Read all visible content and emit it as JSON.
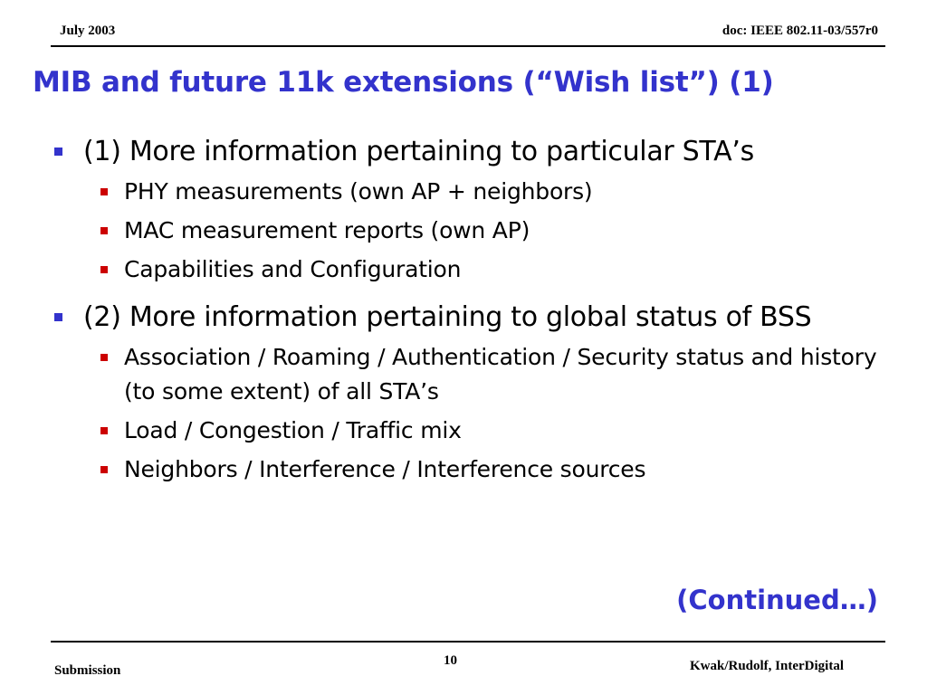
{
  "header": {
    "date": "July 2003",
    "doc": "doc: IEEE 802.11-03/557r0"
  },
  "title": "MIB and future 11k extensions (“Wish list”) (1)",
  "bullets": [
    {
      "text": "(1) More information pertaining to particular STA’s",
      "sub": [
        "PHY measurements (own AP + neighbors)",
        "MAC measurement reports (own AP)",
        "Capabilities and Configuration"
      ]
    },
    {
      "text": "(2) More information pertaining to global status of BSS",
      "sub": [
        "Association / Roaming / Authentication / Security status and history (to some extent) of all STA’s",
        "Load / Congestion / Traffic mix",
        "Neighbors / Interference / Interference sources"
      ]
    }
  ],
  "continued": "(Continued…)",
  "footer": {
    "left": "Submission",
    "page": "10",
    "right": "Kwak/Rudolf, InterDigital"
  },
  "colors": {
    "accent": "#3333cc",
    "sub_bullet": "#cc0000"
  }
}
